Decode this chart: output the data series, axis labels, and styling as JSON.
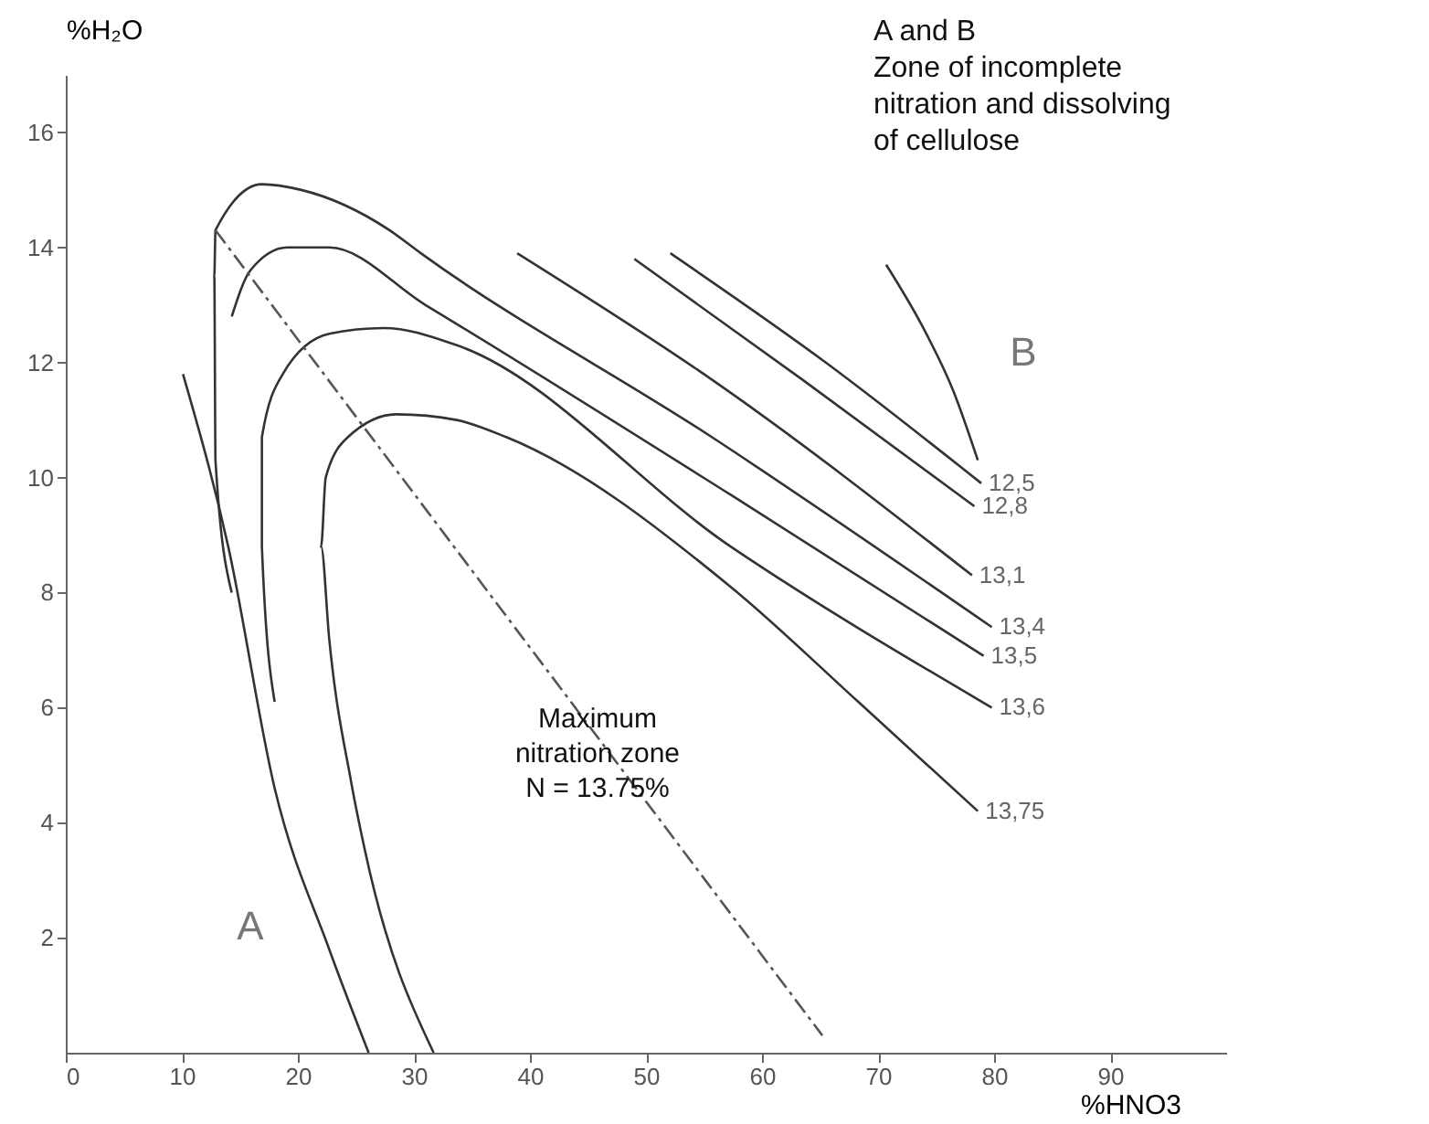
{
  "chart_data": {
    "type": "line",
    "xlabel": "%HNO3",
    "ylabel": "%H₂O",
    "xlim": [
      0,
      100
    ],
    "ylim": [
      0,
      17
    ],
    "xticks": [
      0,
      10,
      20,
      30,
      40,
      50,
      60,
      70,
      80,
      90
    ],
    "yticks": [
      2,
      4,
      6,
      8,
      10,
      12,
      14,
      16
    ],
    "series": [
      {
        "name": "12,5",
        "color": "#333333",
        "x": [
          52.1,
          65.5,
          78.9
        ],
        "values": [
          13.9,
          12.0,
          9.9
        ]
      },
      {
        "name": "12,8",
        "color": "#333333",
        "x": [
          49.0,
          63.5,
          78.3
        ],
        "values": [
          13.8,
          11.7,
          9.5
        ]
      },
      {
        "name": "13,1",
        "color": "#333333",
        "x": [
          38.9,
          55.7,
          78.1
        ],
        "values": [
          13.9,
          11.7,
          8.3
        ]
      },
      {
        "name": "13,4",
        "color": "#333333",
        "x": [
          14.3,
          12.9,
          12.8,
          12.9,
          16.9,
          20.3,
          27.9,
          30.6,
          55.7,
          79.8
        ],
        "values": [
          8.0,
          10.3,
          13.5,
          14.3,
          15.1,
          15.0,
          14.3,
          13.9,
          10.7,
          7.4
        ]
      },
      {
        "name": "13,5",
        "color": "#333333",
        "x": [
          14.3,
          15.9,
          19.1,
          22.7,
          31.0,
          57.3,
          79.1
        ],
        "values": [
          12.8,
          13.6,
          14.0,
          14.0,
          13.0,
          9.7,
          6.9
        ]
      },
      {
        "name": "13,6",
        "color": "#333333",
        "x": [
          18.0,
          16.9,
          16.9,
          18.7,
          22.7,
          27.4,
          33.7,
          57.3,
          79.8
        ],
        "values": [
          6.1,
          8.8,
          10.7,
          11.8,
          12.5,
          12.6,
          12.3,
          8.8,
          6.0
        ]
      },
      {
        "name": "13,75",
        "color": "#333333",
        "x": [
          31.7,
          25.8,
          24.6,
          22.7,
          22.0,
          22.4,
          24.3,
          28.5,
          33.7,
          38.0,
          57.3,
          68.3,
          78.6
        ],
        "values": [
          0,
          3.5,
          4.7,
          7.2,
          8.8,
          10.0,
          10.7,
          11.1,
          11.0,
          10.7,
          8.1,
          6.1,
          4.2
        ]
      },
      {
        "color": "#333333",
        "x": [
          10.1,
          14.0,
          18.0,
          22.7,
          26.1
        ],
        "values": [
          11.8,
          8.8,
          4.6,
          1.8,
          0
        ]
      },
      {
        "color": "#333333",
        "x": [
          70.7,
          73.9,
          76.5,
          78.6
        ],
        "values": [
          13.7,
          12.6,
          11.5,
          10.3
        ]
      },
      {
        "color": "#555555",
        "line_style": "dashed",
        "x": [
          12.9,
          65.2
        ],
        "values": [
          14.3,
          0.3
        ]
      }
    ],
    "annotations": [
      "A",
      "B",
      "Maximum\nnitration zone\nN = 13.75%",
      "A and B\nZone of incomplete\nnitration and dissolving\nof cellulose"
    ]
  }
}
